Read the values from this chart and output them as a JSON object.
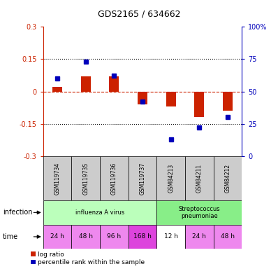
{
  "title": "GDS2165 / 634662",
  "samples": [
    "GSM119734",
    "GSM119735",
    "GSM119736",
    "GSM119737",
    "GSM84213",
    "GSM84211",
    "GSM84212"
  ],
  "log_ratio": [
    0.02,
    0.07,
    0.07,
    -0.06,
    -0.07,
    -0.12,
    -0.09
  ],
  "percentile_rank": [
    60,
    73,
    62,
    42,
    13,
    22,
    30
  ],
  "ylim_left": [
    -0.3,
    0.3
  ],
  "ylim_right": [
    0,
    100
  ],
  "yticks_left": [
    -0.3,
    -0.15,
    0,
    0.15,
    0.3
  ],
  "yticks_right": [
    0,
    25,
    50,
    75,
    100
  ],
  "right_tick_labels": [
    "0",
    "25",
    "50",
    "75",
    "100%"
  ],
  "hlines": [
    -0.15,
    0.15
  ],
  "infection_groups": [
    {
      "label": "influenza A virus",
      "start": 0,
      "end": 3,
      "color": "#bbffbb"
    },
    {
      "label": "Streptococcus\npneumoniae",
      "start": 4,
      "end": 6,
      "color": "#88ee88"
    }
  ],
  "time_labels": [
    "24 h",
    "48 h",
    "96 h",
    "168 h",
    "12 h",
    "24 h",
    "48 h"
  ],
  "time_colors": [
    "#ee88ee",
    "#ee88ee",
    "#ee88ee",
    "#dd44dd",
    "#ffffff",
    "#ee88ee",
    "#ee88ee"
  ],
  "bar_color_red": "#cc2200",
  "bar_color_blue": "#0000bb",
  "left_axis_color": "#cc2200",
  "right_axis_color": "#0000bb",
  "sample_bg": "#cccccc",
  "legend_labels": [
    "log ratio",
    "percentile rank within the sample"
  ]
}
